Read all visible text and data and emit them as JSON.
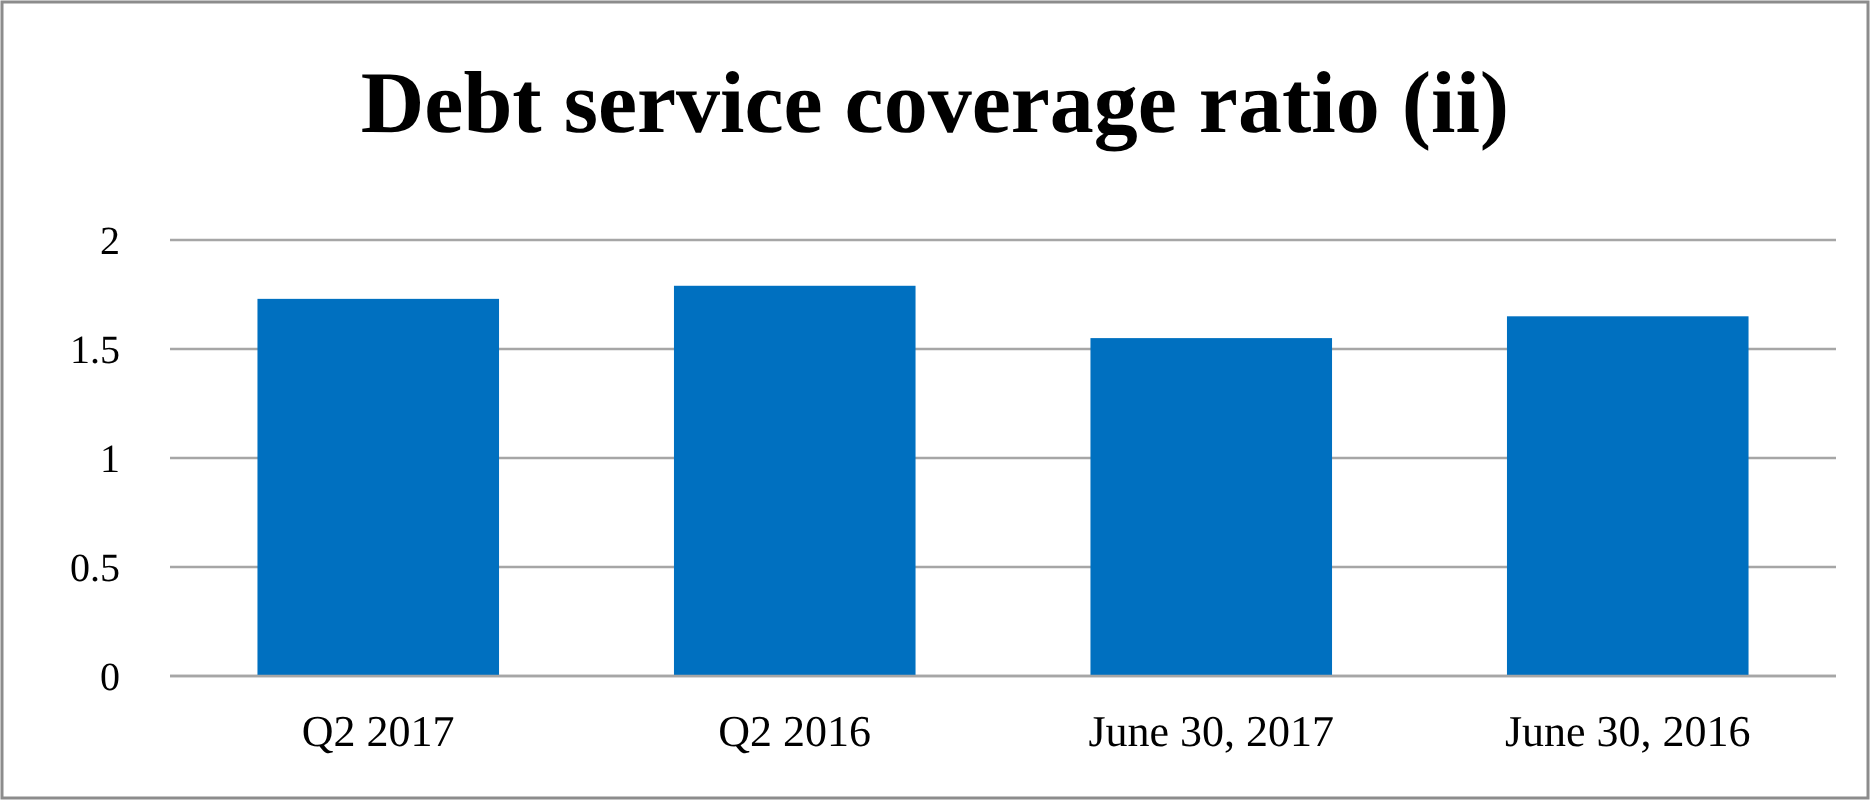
{
  "chart_data": {
    "type": "bar",
    "title": "Debt service coverage ratio (ii)",
    "categories": [
      "Q2 2017",
      "Q2 2016",
      "June 30, 2017",
      "June 30, 2016"
    ],
    "values": [
      1.73,
      1.79,
      1.55,
      1.65
    ],
    "color": "#0070c0",
    "ylim": [
      0,
      2
    ],
    "yticks": [
      0,
      0.5,
      1,
      1.5,
      2
    ],
    "grid": "y"
  }
}
